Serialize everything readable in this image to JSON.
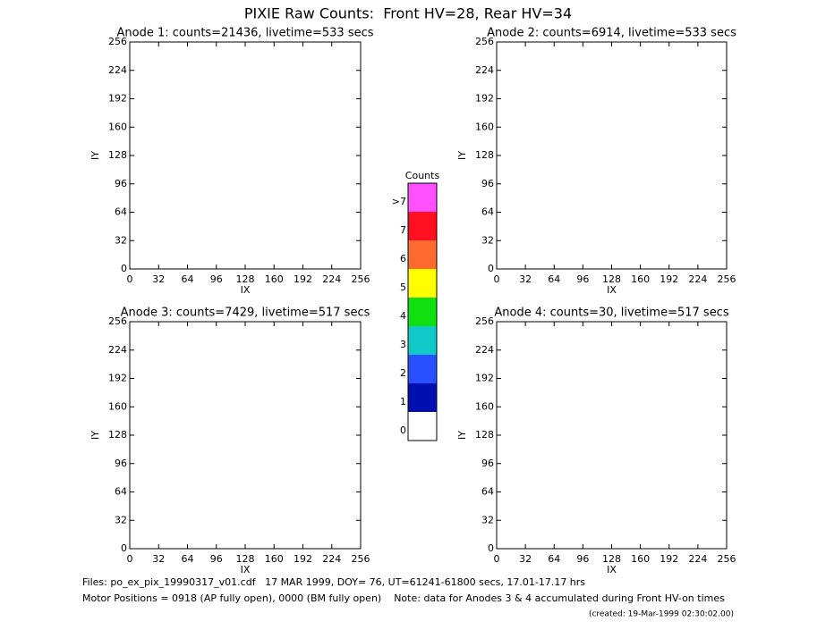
{
  "header": {
    "title": "PIXIE Raw Counts:  Front HV=28, Rear HV=34"
  },
  "chart_data": [
    {
      "type": "heatmap",
      "title": "Anode 1: counts=21436, livetime=533 secs",
      "xlabel": "IX",
      "ylabel": "IY",
      "xlim": [
        0,
        256
      ],
      "ylim": [
        0,
        256
      ],
      "xticks": [
        0,
        32,
        64,
        96,
        128,
        160,
        192,
        224,
        256
      ],
      "yticks": [
        0,
        32,
        64,
        96,
        128,
        160,
        192,
        224,
        256
      ]
    },
    {
      "type": "heatmap",
      "title": "Anode 2: counts=6914, livetime=533 secs",
      "xlabel": "IX",
      "ylabel": "IY",
      "xlim": [
        0,
        256
      ],
      "ylim": [
        0,
        256
      ],
      "xticks": [
        0,
        32,
        64,
        96,
        128,
        160,
        192,
        224,
        256
      ],
      "yticks": [
        0,
        32,
        64,
        96,
        128,
        160,
        192,
        224,
        256
      ]
    },
    {
      "type": "heatmap",
      "title": "Anode 3: counts=7429, livetime=517 secs",
      "xlabel": "IX",
      "ylabel": "IY",
      "xlim": [
        0,
        256
      ],
      "ylim": [
        0,
        256
      ],
      "xticks": [
        0,
        32,
        64,
        96,
        128,
        160,
        192,
        224,
        256
      ],
      "yticks": [
        0,
        32,
        64,
        96,
        128,
        160,
        192,
        224,
        256
      ]
    },
    {
      "type": "heatmap",
      "title": "Anode 4: counts=30, livetime=517 secs",
      "xlabel": "IX",
      "ylabel": "IY",
      "xlim": [
        0,
        256
      ],
      "ylim": [
        0,
        256
      ],
      "xticks": [
        0,
        32,
        64,
        96,
        128,
        160,
        192,
        224,
        256
      ],
      "yticks": [
        0,
        32,
        64,
        96,
        128,
        160,
        192,
        224,
        256
      ]
    },
    {
      "type": "colorbar",
      "title": "Counts",
      "categories": [
        "0",
        "1",
        "2",
        "3",
        "4",
        "5",
        "6",
        "7",
        ">7"
      ],
      "colors": [
        "#ffffff",
        "#0010b0",
        "#2850ff",
        "#10c8c8",
        "#10e010",
        "#ffff00",
        "#ff6a30",
        "#ff1020",
        "#ff50ff"
      ]
    }
  ],
  "footer": {
    "files": "Files: po_ex_pix_19990317_v01.cdf   17 MAR 1999, DOY= 76, UT=61241-61800 secs, 17.01-17.17 hrs",
    "motor": "Motor Positions = 0918 (AP fully open), 0000 (BM fully open)    Note: data for Anodes 3 & 4 accumulated during Front HV-on times",
    "created": "(created: 19-Mar-1999 02:30:02.00)"
  }
}
